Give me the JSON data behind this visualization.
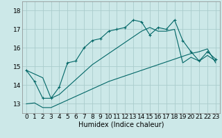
{
  "xlabel": "Humidex (Indice chaleur)",
  "bg_color": "#cce8e8",
  "grid_color": "#aacccc",
  "line_color": "#006666",
  "xlim": [
    -0.5,
    23.5
  ],
  "ylim": [
    12.5,
    18.5
  ],
  "yticks": [
    13,
    14,
    15,
    16,
    17,
    18
  ],
  "xticks": [
    0,
    1,
    2,
    3,
    4,
    5,
    6,
    7,
    8,
    9,
    10,
    11,
    12,
    13,
    14,
    15,
    16,
    17,
    18,
    19,
    20,
    21,
    22,
    23
  ],
  "xtick_labels": [
    "0",
    "1",
    "2",
    "3",
    "4",
    "5",
    "6",
    "7",
    "8",
    "9",
    "10",
    "11",
    "12",
    "13",
    "14",
    "15",
    "16",
    "17",
    "18",
    "19",
    "20",
    "21",
    "22",
    "23"
  ],
  "main_line": [
    14.8,
    14.2,
    13.3,
    13.3,
    13.9,
    15.2,
    15.3,
    16.0,
    16.4,
    16.5,
    16.9,
    17.0,
    17.1,
    17.5,
    17.4,
    16.7,
    17.1,
    17.0,
    17.5,
    16.4,
    15.8,
    15.3,
    15.8,
    15.4
  ],
  "upper_line": [
    14.8,
    14.6,
    14.4,
    13.3,
    13.5,
    13.9,
    14.3,
    14.7,
    15.1,
    15.4,
    15.7,
    16.0,
    16.3,
    16.6,
    16.9,
    17.1,
    16.9,
    16.9,
    17.0,
    15.2,
    15.5,
    15.3,
    15.6,
    15.3
  ],
  "lower_line": [
    13.0,
    13.05,
    12.8,
    12.8,
    13.0,
    13.2,
    13.4,
    13.6,
    13.8,
    14.0,
    14.2,
    14.35,
    14.5,
    14.65,
    14.8,
    14.95,
    15.1,
    15.25,
    15.4,
    15.55,
    15.7,
    15.8,
    15.95,
    15.2
  ],
  "xlabel_fontsize": 7,
  "tick_fontsize": 6.5
}
